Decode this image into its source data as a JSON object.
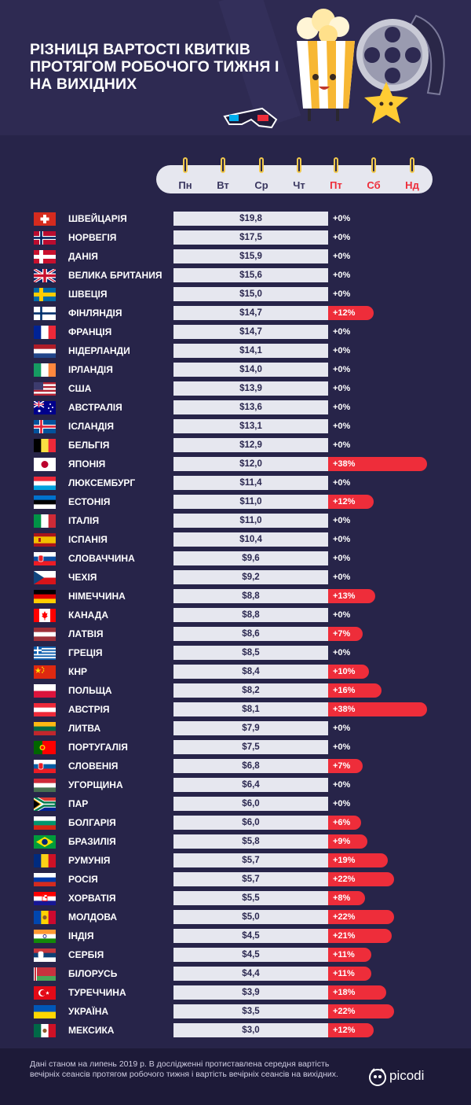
{
  "header": {
    "title": "Різниця вартості квитків протягом робочого тижня і на вихідних"
  },
  "days": [
    {
      "label": "Пн",
      "weekend": false
    },
    {
      "label": "Вт",
      "weekend": false
    },
    {
      "label": "Ср",
      "weekend": false
    },
    {
      "label": "Чт",
      "weekend": false
    },
    {
      "label": "Пт",
      "weekend": true
    },
    {
      "label": "Сб",
      "weekend": true
    },
    {
      "label": "Нд",
      "weekend": true
    }
  ],
  "colors": {
    "background": "#272449",
    "accent": "#ee2d3a",
    "bar": "#e6e7ef"
  },
  "chart_data": {
    "type": "bar",
    "title": "Різниця вартості квитків протягом робочого тижня і на вихідних",
    "unit": "$",
    "categories": [
      "Швейцарія",
      "Норвегія",
      "Данія",
      "Велика Британия",
      "Швеція",
      "Фінляндія",
      "Франція",
      "Нідерланди",
      "Ірландія",
      "США",
      "Австралія",
      "Ісландія",
      "Бельгія",
      "Японія",
      "Люксембург",
      "Естонія",
      "Італія",
      "Іспанія",
      "Словаччина",
      "Чехія",
      "Німеччина",
      "Канада",
      "Латвія",
      "Греція",
      "КНР",
      "Польща",
      "Австрія",
      "Литва",
      "Португалія",
      "Словенія",
      "Угорщина",
      "ПАР",
      "Болгарія",
      "Бразилія",
      "Румунія",
      "Росія",
      "Хорватія",
      "Молдова",
      "Індія",
      "Сербія",
      "Білорусь",
      "Туреччина",
      "Україна",
      "Мексика"
    ],
    "series": [
      {
        "values": [
          19.8,
          17.5,
          15.9,
          15.6,
          15.0,
          14.7,
          14.7,
          14.1,
          14.0,
          13.9,
          13.6,
          13.1,
          12.9,
          12.0,
          11.4,
          11.0,
          11.0,
          10.4,
          9.6,
          9.2,
          8.8,
          8.8,
          8.6,
          8.5,
          8.4,
          8.2,
          8.1,
          7.9,
          7.5,
          6.8,
          6.4,
          6.0,
          6.0,
          5.8,
          5.7,
          5.7,
          5.5,
          5.0,
          4.5,
          4.5,
          4.4,
          3.9,
          3.5,
          3.0
        ]
      },
      {
        "values": [
          0,
          0,
          0,
          0,
          0,
          12,
          0,
          0,
          0,
          0,
          0,
          0,
          0,
          38,
          0,
          12,
          0,
          0,
          0,
          0,
          13,
          0,
          7,
          0,
          10,
          16,
          38,
          0,
          0,
          7,
          0,
          0,
          6,
          9,
          19,
          22,
          8,
          22,
          21,
          11,
          11,
          18,
          22,
          12
        ]
      }
    ],
    "price_labels": [
      "$19,8",
      "$17,5",
      "$15,9",
      "$15,6",
      "$15,0",
      "$14,7",
      "$14,7",
      "$14,1",
      "$14,0",
      "$13,9",
      "$13,6",
      "$13,1",
      "$12,9",
      "$12,0",
      "$11,4",
      "$11,0",
      "$11,0",
      "$10,4",
      "$9,6",
      "$9,2",
      "$8,8",
      "$8,8",
      "$8,6",
      "$8,5",
      "$8,4",
      "$8,2",
      "$8,1",
      "$7,9",
      "$7,5",
      "$6,8",
      "$6,4",
      "$6,0",
      "$6,0",
      "$5,8",
      "$5,7",
      "$5,7",
      "$5,5",
      "$5,0",
      "$4,5",
      "$4,5",
      "$4,4",
      "$3,9",
      "$3,5",
      "$3,0"
    ],
    "increase_labels": [
      "+0%",
      "+0%",
      "+0%",
      "+0%",
      "+0%",
      "+12%",
      "+0%",
      "+0%",
      "+0%",
      "+0%",
      "+0%",
      "+0%",
      "+0%",
      "+38%",
      "+0%",
      "+12%",
      "+0%",
      "+0%",
      "+0%",
      "+0%",
      "+13%",
      "+0%",
      "+7%",
      "+0%",
      "+10%",
      "+16%",
      "+38%",
      "+0%",
      "+0%",
      "+7%",
      "+0%",
      "+0%",
      "+6%",
      "+9%",
      "+19%",
      "+22%",
      "+8%",
      "+22%",
      "+21%",
      "+11%",
      "+11%",
      "+18%",
      "+22%",
      "+12%"
    ],
    "flags": [
      {
        "t": "cross",
        "c": [
          "#d52b1e",
          "#ffffff"
        ]
      },
      {
        "t": "nordic",
        "c": [
          "#ba0c2f",
          "#ffffff",
          "#00205b"
        ]
      },
      {
        "t": "nordic",
        "c": [
          "#c8102e",
          "#ffffff",
          "#ffffff"
        ]
      },
      {
        "t": "uk",
        "c": [
          "#012169",
          "#ffffff",
          "#c8102e"
        ]
      },
      {
        "t": "nordic",
        "c": [
          "#006aa7",
          "#fecc00",
          "#fecc00"
        ]
      },
      {
        "t": "nordic",
        "c": [
          "#ffffff",
          "#ffffff",
          "#002f6c"
        ]
      },
      {
        "t": "v",
        "c": [
          "#002395",
          "#ffffff",
          "#ed2939"
        ]
      },
      {
        "t": "h",
        "c": [
          "#ae1c28",
          "#ffffff",
          "#21468b"
        ]
      },
      {
        "t": "v",
        "c": [
          "#169b62",
          "#ffffff",
          "#ff883e"
        ]
      },
      {
        "t": "us",
        "c": [
          "#b22234",
          "#ffffff",
          "#3c3b6e"
        ]
      },
      {
        "t": "au",
        "c": [
          "#00008b",
          "#ffffff",
          "#e4002b"
        ]
      },
      {
        "t": "nordic",
        "c": [
          "#02529c",
          "#ffffff",
          "#dc1e35"
        ]
      },
      {
        "t": "v",
        "c": [
          "#000000",
          "#fae042",
          "#ed2939"
        ]
      },
      {
        "t": "jp",
        "c": [
          "#ffffff",
          "#bc002d"
        ]
      },
      {
        "t": "h",
        "c": [
          "#ed2939",
          "#ffffff",
          "#00a1de"
        ]
      },
      {
        "t": "h",
        "c": [
          "#0072ce",
          "#000000",
          "#ffffff"
        ]
      },
      {
        "t": "v",
        "c": [
          "#009246",
          "#ffffff",
          "#ce2b37"
        ]
      },
      {
        "t": "es",
        "c": [
          "#aa151b",
          "#f1bf00"
        ]
      },
      {
        "t": "h",
        "c": [
          "#ffffff",
          "#0b4ea2",
          "#ee1c25"
        ],
        "e": "shieldL"
      },
      {
        "t": "cz",
        "c": [
          "#ffffff",
          "#d7141a",
          "#11457e"
        ]
      },
      {
        "t": "h",
        "c": [
          "#000000",
          "#dd0000",
          "#ffce00"
        ]
      },
      {
        "t": "ca",
        "c": [
          "#ff0000",
          "#ffffff"
        ]
      },
      {
        "t": "h",
        "c": [
          "#9e3039",
          "#ffffff",
          "#9e3039"
        ]
      },
      {
        "t": "gr",
        "c": [
          "#0d5eaf",
          "#ffffff"
        ]
      },
      {
        "t": "cn",
        "c": [
          "#de2910",
          "#ffde00"
        ]
      },
      {
        "t": "h2",
        "c": [
          "#ffffff",
          "#dc143c"
        ]
      },
      {
        "t": "h",
        "c": [
          "#ed2939",
          "#ffffff",
          "#ed2939"
        ]
      },
      {
        "t": "h",
        "c": [
          "#fdb913",
          "#006a44",
          "#c1272d"
        ]
      },
      {
        "t": "pt",
        "c": [
          "#006600",
          "#ff0000",
          "#ffcc00"
        ]
      },
      {
        "t": "h",
        "c": [
          "#ffffff",
          "#005da4",
          "#ed1c24"
        ],
        "e": "shieldL"
      },
      {
        "t": "h",
        "c": [
          "#ce2939",
          "#ffffff",
          "#477050"
        ]
      },
      {
        "t": "za",
        "c": [
          "#de3831",
          "#002395",
          "#007a4d",
          "#ffb612",
          "#000000",
          "#ffffff"
        ]
      },
      {
        "t": "h",
        "c": [
          "#ffffff",
          "#00966e",
          "#d62612"
        ]
      },
      {
        "t": "br",
        "c": [
          "#009c3b",
          "#ffdf00",
          "#002776"
        ]
      },
      {
        "t": "v",
        "c": [
          "#002b7f",
          "#fcd116",
          "#ce1126"
        ]
      },
      {
        "t": "h",
        "c": [
          "#ffffff",
          "#0039a6",
          "#d52b1e"
        ]
      },
      {
        "t": "h",
        "c": [
          "#ff0000",
          "#ffffff",
          "#171796"
        ],
        "e": "shieldC"
      },
      {
        "t": "v",
        "c": [
          "#0046ae",
          "#ffd200",
          "#cc092f"
        ],
        "e": "emblem"
      },
      {
        "t": "h",
        "c": [
          "#ff9933",
          "#ffffff",
          "#138808"
        ],
        "e": "wheel"
      },
      {
        "t": "h",
        "c": [
          "#c6363c",
          "#0c4076",
          "#ffffff"
        ],
        "e": "shieldL"
      },
      {
        "t": "by",
        "c": [
          "#c8313e",
          "#4aa657",
          "#ffffff"
        ]
      },
      {
        "t": "tr",
        "c": [
          "#e30a17",
          "#ffffff"
        ]
      },
      {
        "t": "h2",
        "c": [
          "#0057b7",
          "#ffd700"
        ]
      },
      {
        "t": "v",
        "c": [
          "#006847",
          "#ffffff",
          "#ce1126"
        ],
        "e": "emblem"
      }
    ]
  },
  "footer": {
    "note": "Дані станом на липень 2019 р. В дослідженні протиставлена середня вартість вечірніх сеансів протягом робочого тижня і вартість вечірніх сеансів на вихідних.",
    "logo": "picodi"
  }
}
